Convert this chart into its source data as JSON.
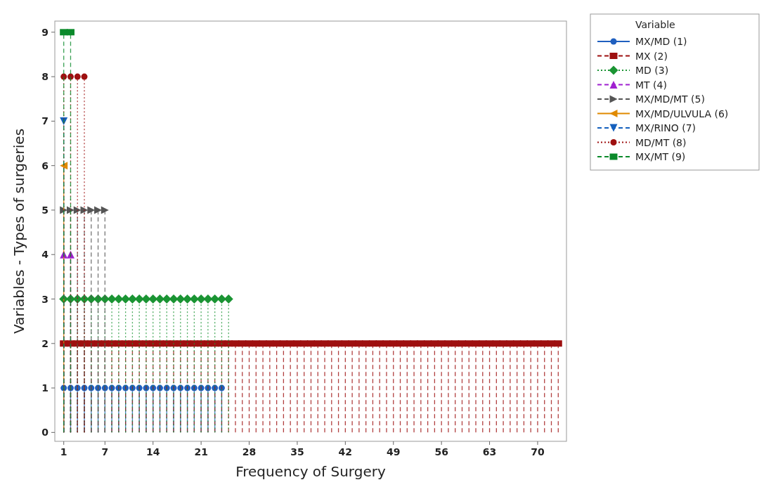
{
  "chart_data": {
    "type": "lollipop",
    "xlabel": "Frequency of Surgery",
    "ylabel": "Variables - Types of surgeries",
    "legend_title": "Variable",
    "legend": "right",
    "xlim": [
      -0.3,
      74.2
    ],
    "xticks": [
      1,
      7,
      14,
      21,
      28,
      35,
      42,
      49,
      56,
      63,
      70
    ],
    "ylim": [
      -0.2,
      9.25
    ],
    "yticks": [
      0,
      1,
      2,
      3,
      4,
      5,
      6,
      7,
      8,
      9
    ],
    "series": [
      {
        "name": "MX/MD (1)",
        "color": "#1f5fbf",
        "marker": "circle",
        "line_style": "solid",
        "x": [
          1,
          2,
          3,
          4,
          5,
          6,
          7,
          8,
          9,
          10,
          11,
          12,
          13,
          14,
          15,
          16,
          17,
          18,
          19,
          20,
          21,
          22,
          23,
          24
        ],
        "values": [
          1,
          1,
          1,
          1,
          1,
          1,
          1,
          1,
          1,
          1,
          1,
          1,
          1,
          1,
          1,
          1,
          1,
          1,
          1,
          1,
          1,
          1,
          1,
          1
        ]
      },
      {
        "name": "MX (2)",
        "color": "#9e1010",
        "marker": "square",
        "line_style": "dashed",
        "x": [
          1,
          2,
          3,
          4,
          5,
          6,
          7,
          8,
          9,
          10,
          11,
          12,
          13,
          14,
          15,
          16,
          17,
          18,
          19,
          20,
          21,
          22,
          23,
          24,
          25,
          26,
          27,
          28,
          29,
          30,
          31,
          32,
          33,
          34,
          35,
          36,
          37,
          38,
          39,
          40,
          41,
          42,
          43,
          44,
          45,
          46,
          47,
          48,
          49,
          50,
          51,
          52,
          53,
          54,
          55,
          56,
          57,
          58,
          59,
          60,
          61,
          62,
          63,
          64,
          65,
          66,
          67,
          68,
          69,
          70,
          71,
          72,
          73
        ],
        "values": [
          2,
          2,
          2,
          2,
          2,
          2,
          2,
          2,
          2,
          2,
          2,
          2,
          2,
          2,
          2,
          2,
          2,
          2,
          2,
          2,
          2,
          2,
          2,
          2,
          2,
          2,
          2,
          2,
          2,
          2,
          2,
          2,
          2,
          2,
          2,
          2,
          2,
          2,
          2,
          2,
          2,
          2,
          2,
          2,
          2,
          2,
          2,
          2,
          2,
          2,
          2,
          2,
          2,
          2,
          2,
          2,
          2,
          2,
          2,
          2,
          2,
          2,
          2,
          2,
          2,
          2,
          2,
          2,
          2,
          2,
          2,
          2,
          2
        ]
      },
      {
        "name": "MD (3)",
        "color": "#1a9433",
        "marker": "diamond",
        "line_style": "dotted",
        "x": [
          1,
          2,
          3,
          4,
          5,
          6,
          7,
          8,
          9,
          10,
          11,
          12,
          13,
          14,
          15,
          16,
          17,
          18,
          19,
          20,
          21,
          22,
          23,
          24,
          25
        ],
        "values": [
          3,
          3,
          3,
          3,
          3,
          3,
          3,
          3,
          3,
          3,
          3,
          3,
          3,
          3,
          3,
          3,
          3,
          3,
          3,
          3,
          3,
          3,
          3,
          3,
          3
        ]
      },
      {
        "name": "MT (4)",
        "color": "#a020d0",
        "marker": "triangle",
        "line_style": "dashed",
        "x": [
          1,
          2
        ],
        "values": [
          4,
          4
        ]
      },
      {
        "name": "MX/MD/MT (5)",
        "color": "#555555",
        "marker": "triangle-right",
        "line_style": "dashed",
        "x": [
          1,
          2,
          3,
          4,
          5,
          6,
          7
        ],
        "values": [
          5,
          5,
          5,
          5,
          5,
          5,
          5
        ]
      },
      {
        "name": "MX/MD/ULVULA (6)",
        "color": "#e08a00",
        "marker": "triangle-left",
        "line_style": "solid",
        "x": [
          1
        ],
        "values": [
          6
        ]
      },
      {
        "name": "MX/RINO (7)",
        "color": "#1560bd",
        "marker": "triangle-down",
        "line_style": "dashed",
        "x": [
          1
        ],
        "values": [
          7
        ]
      },
      {
        "name": "MD/MT (8)",
        "color": "#9e1010",
        "marker": "circle",
        "line_style": "dotted",
        "x": [
          1,
          2,
          3,
          4
        ],
        "values": [
          8,
          8,
          8,
          8
        ]
      },
      {
        "name": "MX/MT (9)",
        "color": "#0a8a2a",
        "marker": "square",
        "line_style": "dashed",
        "x": [
          1,
          2
        ],
        "values": [
          9,
          9
        ]
      }
    ]
  }
}
